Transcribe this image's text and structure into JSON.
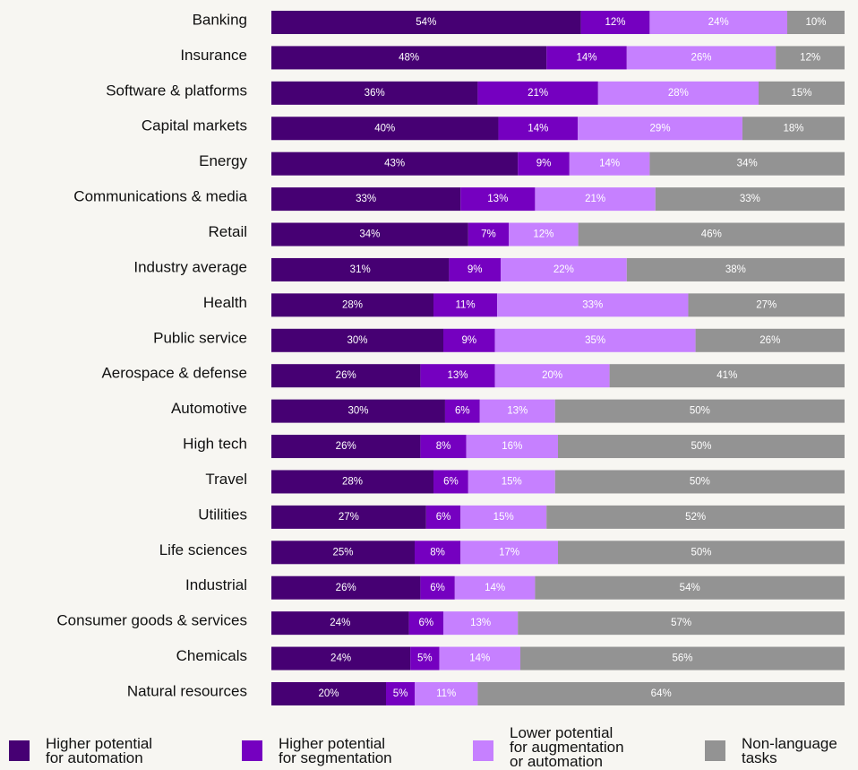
{
  "chart_data": {
    "type": "bar",
    "orientation": "horizontal",
    "stacked": true,
    "normalized": true,
    "categories": [
      "Banking",
      "Insurance",
      "Software & platforms",
      "Capital markets",
      "Energy",
      "Communications & media",
      "Retail",
      "Industry average",
      "Health",
      "Public service",
      "Aerospace & defense",
      "Automotive",
      "High tech",
      "Travel",
      "Utilities",
      "Life sciences",
      "Industrial",
      "Consumer goods & services",
      "Chemicals",
      "Natural resources"
    ],
    "series": [
      {
        "name": "Higher potential for automation",
        "color": "#460073",
        "values": [
          54,
          48,
          36,
          40,
          43,
          33,
          34,
          31,
          28,
          30,
          26,
          30,
          26,
          28,
          27,
          25,
          26,
          24,
          24,
          20
        ]
      },
      {
        "name": "Higher potential for segmentation",
        "color": "#7500c0",
        "values": [
          12,
          14,
          21,
          14,
          9,
          13,
          7,
          9,
          11,
          9,
          13,
          6,
          8,
          6,
          6,
          8,
          6,
          6,
          5,
          5
        ]
      },
      {
        "name": "Lower potential for augmentation or automation",
        "color": "#c680ff",
        "values": [
          24,
          26,
          28,
          29,
          14,
          21,
          12,
          22,
          33,
          35,
          20,
          13,
          16,
          15,
          15,
          17,
          14,
          13,
          14,
          11
        ]
      },
      {
        "name": "Non-language tasks",
        "color": "#939393",
        "values": [
          10,
          12,
          15,
          18,
          34,
          33,
          46,
          38,
          27,
          26,
          41,
          50,
          50,
          50,
          52,
          50,
          54,
          57,
          56,
          64
        ]
      }
    ],
    "value_suffix": "%",
    "legend_position": "bottom",
    "grid": false
  },
  "legend": [
    {
      "label": "Higher potential\nfor automation",
      "color": "#460073"
    },
    {
      "label": "Higher potential\nfor segmentation",
      "color": "#7500c0"
    },
    {
      "label": "Lower potential\nfor augmentation\nor automation",
      "color": "#c680ff"
    },
    {
      "label": "Non-language\ntasks",
      "color": "#939393"
    }
  ]
}
